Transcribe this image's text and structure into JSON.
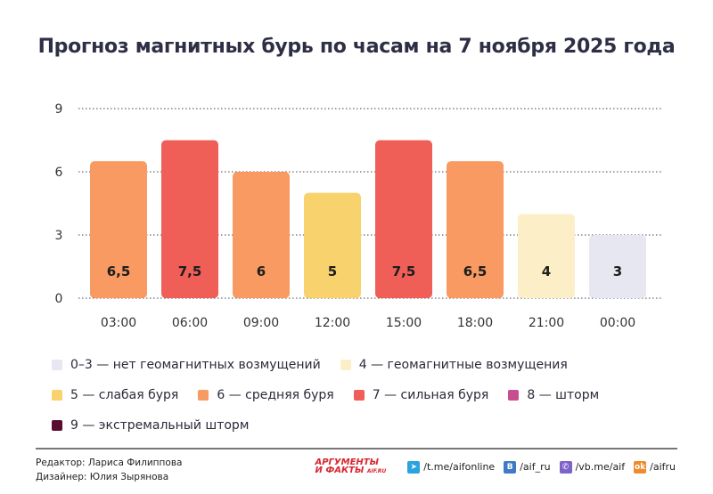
{
  "chart_data": {
    "type": "bar",
    "title": "Прогноз магнитных бурь по часам на 7 ноября 2025 года",
    "categories": [
      "03:00",
      "06:00",
      "09:00",
      "12:00",
      "15:00",
      "18:00",
      "21:00",
      "00:00"
    ],
    "values": [
      6.5,
      7.5,
      6,
      5,
      7.5,
      6.5,
      4,
      3
    ],
    "value_labels": [
      "6,5",
      "7,5",
      "6",
      "5",
      "7,5",
      "6,5",
      "4",
      "3"
    ],
    "ylim": [
      0,
      9
    ],
    "yticks": [
      0,
      3,
      6,
      9
    ],
    "grid": true,
    "xlabel": "",
    "ylabel": "",
    "legend_placement": "bottom",
    "legend": [
      {
        "label": "0–3 — нет геомагнитных возмущений",
        "color": "#E6E7F0"
      },
      {
        "label": "4 — геомагнитные возмущения",
        "color": "#FCEFC8"
      },
      {
        "label": "5 — слабая буря",
        "color": "#F8D26C"
      },
      {
        "label": "6 — средняя буря",
        "color": "#F89A62"
      },
      {
        "label": "7 — сильная буря",
        "color": "#EF5F58"
      },
      {
        "label": "8 — шторм",
        "color": "#C84D8E"
      },
      {
        "label": "9 — экстремальный шторм",
        "color": "#5A0C2E"
      }
    ]
  },
  "footer": {
    "editor": "Редактор: Лариса Филиппова",
    "designer": "Дизайнер: Юлия Зырянова",
    "logo_text": "АРГУМЕНТЫ И ФАКТЫ AIF.RU",
    "social": [
      {
        "icon": "telegram-icon",
        "label": "/t.me/aifonline",
        "color": "#2AA3DE"
      },
      {
        "icon": "vk-icon",
        "label": "/aif_ru",
        "color": "#3F7BC4"
      },
      {
        "icon": "viber-icon",
        "label": "/vb.me/aif",
        "color": "#7D63C9"
      },
      {
        "icon": "odnoklassniki-icon",
        "label": "/aifru",
        "color": "#EE8B2E"
      }
    ]
  }
}
